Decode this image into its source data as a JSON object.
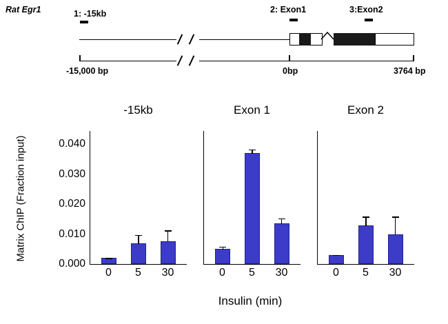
{
  "diagram": {
    "gene_label": "Rat Egr1",
    "primers": [
      {
        "label": "1: -15kb"
      },
      {
        "label": "2: Exon1"
      },
      {
        "label": "3:Exon2"
      }
    ],
    "scale_labels": {
      "left": "-15,000  bp",
      "zero": "0bp",
      "right": "3764  bp"
    }
  },
  "chart_data": {
    "type": "bar",
    "categories": [
      "0",
      "5",
      "30"
    ],
    "panels": [
      {
        "title": "-15kb",
        "values": [
          0.002,
          0.007,
          0.0075
        ],
        "errors": [
          0.0002,
          0.003,
          0.004
        ]
      },
      {
        "title": "Exon 1",
        "values": [
          0.005,
          0.037,
          0.0135
        ],
        "errors": [
          0.001,
          0.0015,
          0.002
        ]
      },
      {
        "title": "Exon 2",
        "values": [
          0.003,
          0.013,
          0.01
        ],
        "errors": [
          0.0003,
          0.003,
          0.006
        ]
      }
    ],
    "xlabel": "Insulin (min)",
    "ylabel": "Matrix ChIP (Fraction input)",
    "yticks": [
      0.0,
      0.01,
      0.02,
      0.03,
      0.04
    ],
    "ytick_labels": [
      "0.000",
      "0.010",
      "0.020",
      "0.030",
      "0.040"
    ],
    "ylim": [
      0,
      0.0444
    ],
    "grid": false,
    "legend": null,
    "bar_color": "#3c3cc8",
    "bar_border_color": "#20208a"
  }
}
